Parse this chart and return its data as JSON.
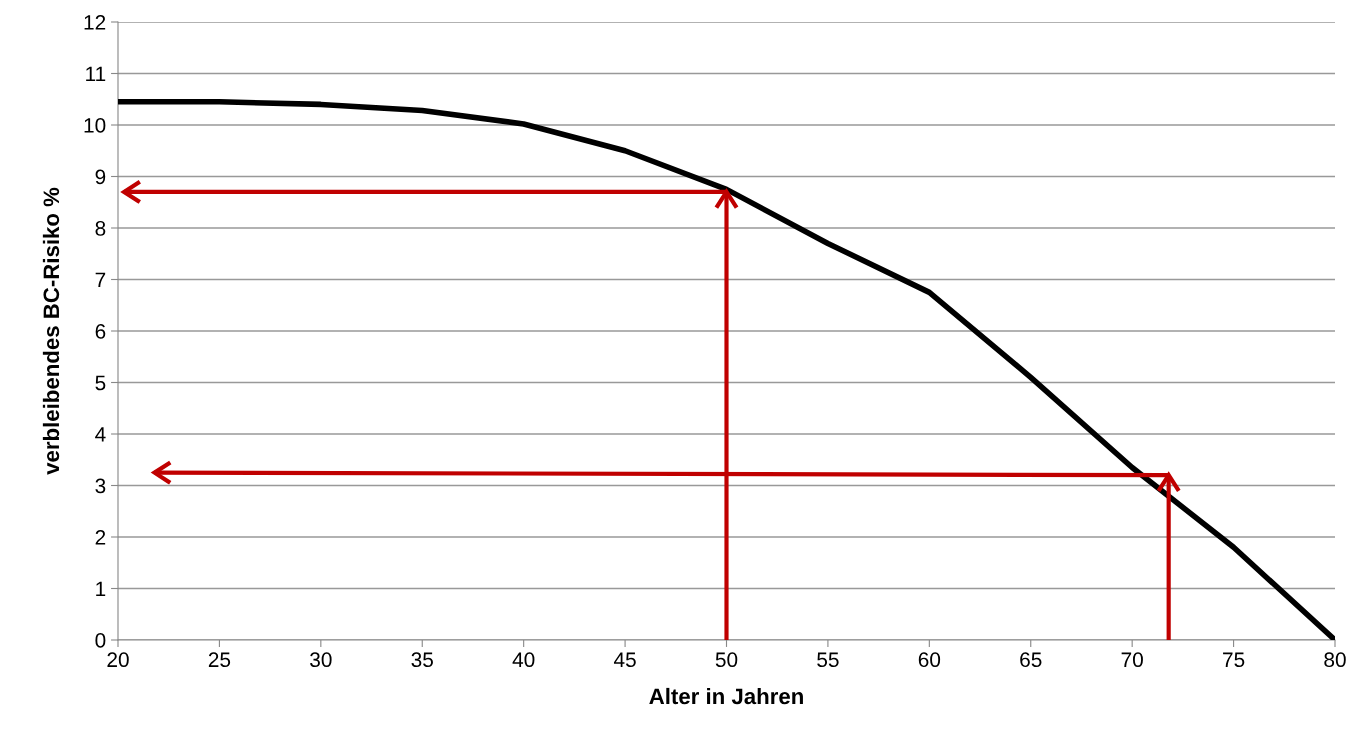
{
  "chart_data": {
    "type": "line",
    "xlabel": "Alter in Jahren",
    "ylabel": "verbleibendes BC-Risiko %",
    "x": [
      20,
      25,
      30,
      35,
      40,
      45,
      50,
      55,
      60,
      65,
      70,
      75,
      80
    ],
    "series": [
      {
        "color": "#000000",
        "values": [
          10.45,
          10.45,
          10.4,
          10.28,
          10.02,
          9.5,
          8.75,
          7.7,
          6.75,
          5.1,
          3.35,
          1.8,
          0
        ]
      },
      {
        "type": "line",
        "color": "#c00000",
        "x": [
          50,
          50
        ],
        "values": [
          0,
          8.7
        ]
      },
      {
        "type": "line",
        "color": "#c00000",
        "x": [
          50,
          20.3
        ],
        "values": [
          8.7,
          8.7
        ]
      },
      {
        "type": "line",
        "color": "#c00000",
        "x": [
          71.8,
          71.8
        ],
        "values": [
          0,
          3.2
        ]
      },
      {
        "type": "line",
        "color": "#c00000",
        "x": [
          71.8,
          21.8
        ],
        "values": [
          3.2,
          3.25
        ]
      }
    ],
    "xlim": [
      20,
      80
    ],
    "xticks": [
      20,
      25,
      30,
      35,
      40,
      45,
      50,
      55,
      60,
      65,
      70,
      75,
      80
    ],
    "ylim": [
      0,
      12
    ],
    "yticks": [
      0,
      1,
      2,
      3,
      4,
      5,
      6,
      7,
      8,
      9,
      10,
      11,
      12
    ],
    "grid": "y"
  }
}
